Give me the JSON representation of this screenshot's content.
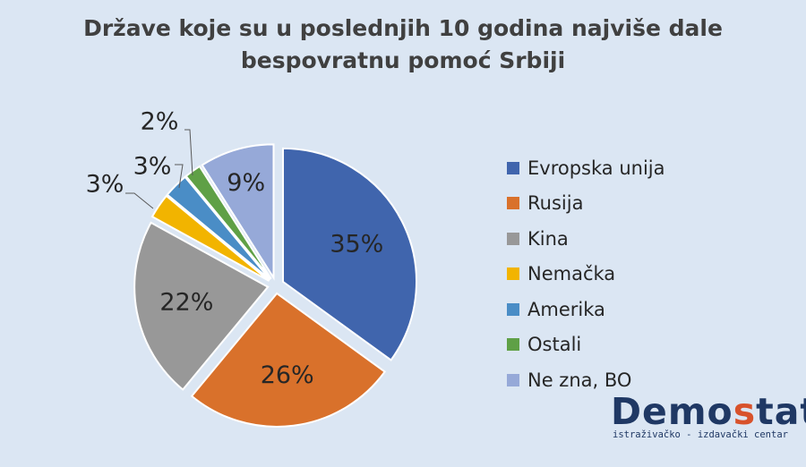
{
  "chart_data": {
    "type": "pie",
    "title_lines": [
      "Države koje su u poslednjih 10 godina najviše dale",
      "bespovratnu pomoć Srbiji"
    ],
    "start_angle_deg": 0,
    "slices": [
      {
        "label": "Evropska unija",
        "value": 35,
        "display": "35%",
        "color": "#4065ad"
      },
      {
        "label": "Rusija",
        "value": 26,
        "display": "26%",
        "color": "#d9712b"
      },
      {
        "label": "Kina",
        "value": 22,
        "display": "22%",
        "color": "#989898"
      },
      {
        "label": "Nemačka",
        "value": 3,
        "display": "3%",
        "color": "#f2b400"
      },
      {
        "label": "Amerika",
        "value": 3,
        "display": "3%",
        "color": "#4a8dc6"
      },
      {
        "label": "Ostali",
        "value": 2,
        "display": "2%",
        "color": "#5fa046"
      },
      {
        "label": "Ne zna, BO",
        "value": 9,
        "display": "9%",
        "color": "#96a9d8"
      }
    ],
    "legend_position": "right"
  },
  "logo": {
    "word_part1": "Demo",
    "word_accent": "s",
    "word_part2": "tat",
    "tagline": "istraživačko - izdavački centar",
    "accent_color": "#d8522b",
    "main_color": "#1f3864"
  }
}
